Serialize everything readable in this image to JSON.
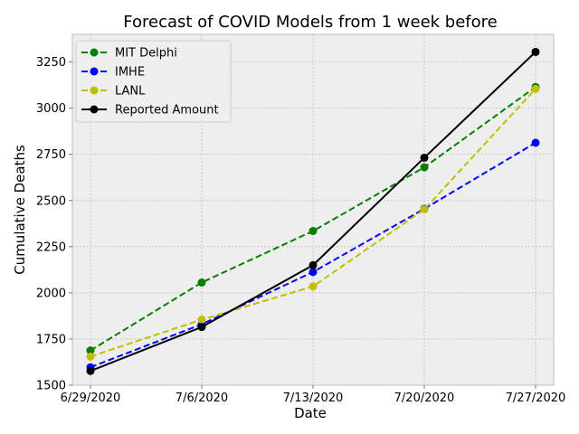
{
  "chart_data": {
    "type": "line",
    "title": "Forecast of COVID Models from 1 week before",
    "xlabel": "Date",
    "ylabel": "Cumulative Deaths",
    "categories": [
      "6/29/2020",
      "7/6/2020",
      "7/13/2020",
      "7/20/2020",
      "7/27/2020"
    ],
    "ylim": [
      1500,
      3400
    ],
    "yticks": [
      1500,
      1750,
      2000,
      2250,
      2500,
      2750,
      3000,
      3250
    ],
    "grid": true,
    "legend_position": "top-left",
    "series": [
      {
        "name": "MIT Delphi",
        "color": "#008000",
        "dash": "dashed",
        "values": [
          1688,
          2056,
          2335,
          2680,
          3115
        ]
      },
      {
        "name": "IMHE",
        "color": "#0000ff",
        "dash": "dashed",
        "values": [
          1597,
          1830,
          2113,
          2455,
          2813
        ]
      },
      {
        "name": "LANL",
        "color": "#bfbf00",
        "dash": "dashed",
        "values": [
          1655,
          1855,
          2035,
          2452,
          3105
        ]
      },
      {
        "name": "Reported Amount",
        "color": "#000000",
        "dash": "solid",
        "values": [
          1577,
          1815,
          2150,
          2732,
          3305
        ]
      }
    ]
  }
}
